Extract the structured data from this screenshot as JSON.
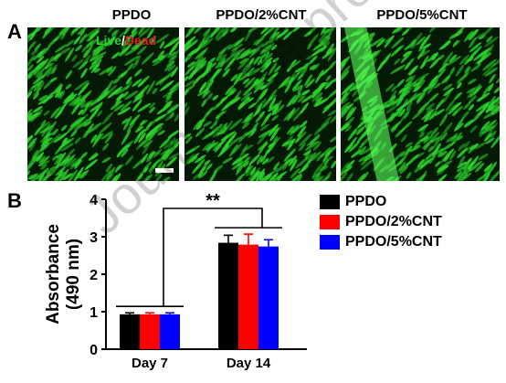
{
  "panel_a": {
    "letter": "A",
    "images": [
      {
        "title": "PPDO"
      },
      {
        "title": "PPDO/2%CNT"
      },
      {
        "title": "PPDO/5%CNT"
      }
    ],
    "stain_live": "Live",
    "stain_slash": "/",
    "stain_dead": "Dead",
    "colors": {
      "live": "#2bd12b",
      "dead": "#e02020",
      "background": "#041a04"
    }
  },
  "panel_b": {
    "letter": "B"
  },
  "watermark": "Journal Pre-proof",
  "chart_data": {
    "type": "bar",
    "categories": [
      "Day 7",
      "Day 14"
    ],
    "series": [
      {
        "name": "PPDO",
        "values": [
          0.93,
          2.84
        ],
        "errors": [
          0.04,
          0.2
        ],
        "color": "#000000"
      },
      {
        "name": "PPDO/2%CNT",
        "values": [
          0.93,
          2.79
        ],
        "errors": [
          0.04,
          0.28
        ],
        "color": "#ff0000"
      },
      {
        "name": "PPDO/5%CNT",
        "values": [
          0.93,
          2.74
        ],
        "errors": [
          0.04,
          0.18
        ],
        "color": "#0000ff"
      }
    ],
    "ylabel_line1": "Absorbance",
    "ylabel_line2": "(490 nm)",
    "xlabel": "",
    "ylim": [
      0,
      4
    ],
    "yticks": [
      0,
      1,
      2,
      3,
      4
    ],
    "significance": "**",
    "grid": false,
    "legend_position": "right"
  }
}
